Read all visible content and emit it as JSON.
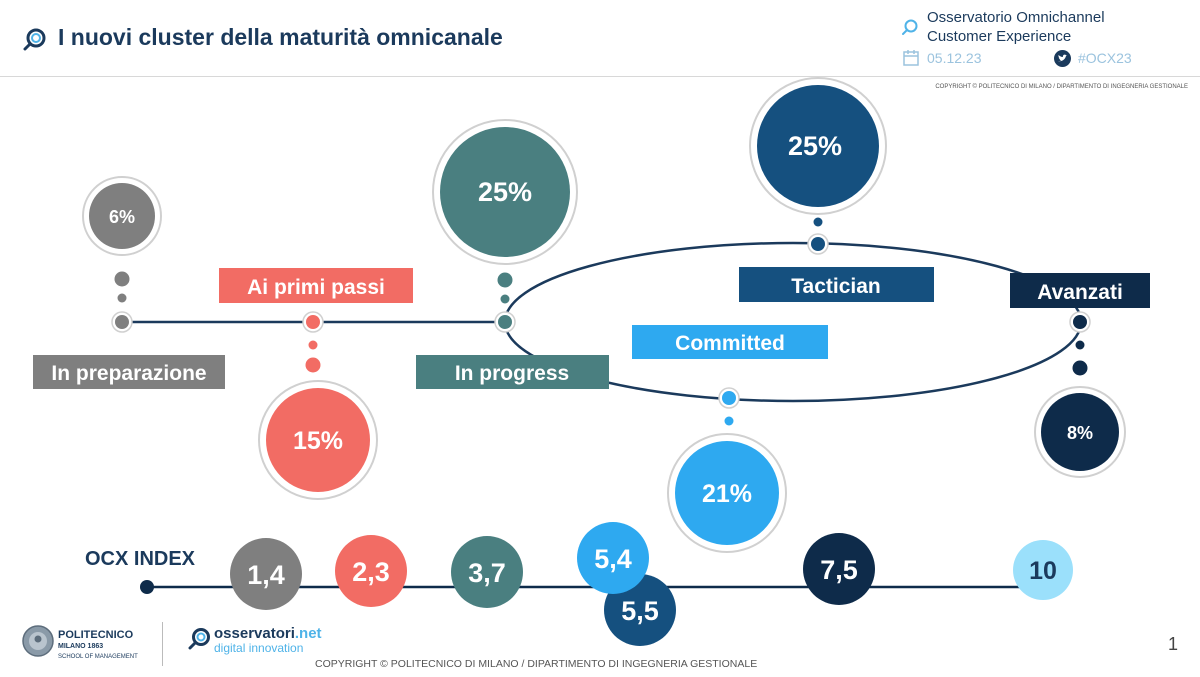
{
  "header": {
    "title": "I nuovi cluster della maturità omnicanale",
    "observatory_line1": "Osservatorio Omnichannel",
    "observatory_line2": "Customer Experience",
    "date": "05.12.23",
    "hashtag": "#OCX23"
  },
  "copyright_top": "COPYRIGHT © POLITECNICO DI MILANO / DIPARTIMENTO DI INGEGNERIA GESTIONALE",
  "copyright_bottom": "COPYRIGHT © POLITECNICO DI MILANO / DIPARTIMENTO DI INGEGNERIA GESTIONALE",
  "page_number": "1",
  "logos": {
    "politecnico_name": "POLITECNICO",
    "politecnico_city": "MILANO 1863",
    "politecnico_school": "SCHOOL OF MANAGEMENT",
    "osservatori_main": "osservatori",
    "osservatori_net": ".net",
    "osservatori_sub": "digital innovation"
  },
  "clusters": [
    {
      "name": "In preparazione",
      "share": "6%",
      "color": "#7f7f7f"
    },
    {
      "name": "Ai primi passi",
      "share": "15%",
      "color": "#f26c64"
    },
    {
      "name": "In progress",
      "share": "25%",
      "color": "#4a7f80"
    },
    {
      "name": "Committed",
      "share": "21%",
      "color": "#2ea9f0"
    },
    {
      "name": "Tactician",
      "share": "25%",
      "color": "#15507f"
    },
    {
      "name": "Avanzati",
      "share": "8%",
      "color": "#0e2b4a"
    }
  ],
  "ocx_index": {
    "label": "OCX INDEX",
    "values": [
      {
        "value": "1,4",
        "color": "#7f7f7f"
      },
      {
        "value": "2,3",
        "color": "#f26c64"
      },
      {
        "value": "3,7",
        "color": "#4a7f80"
      },
      {
        "value": "5,4",
        "color": "#2ea9f0"
      },
      {
        "value": "5,5",
        "color": "#15507f"
      },
      {
        "value": "7,5",
        "color": "#0e2b4a"
      },
      {
        "value": "10",
        "color": "#9be0fb"
      }
    ]
  }
}
